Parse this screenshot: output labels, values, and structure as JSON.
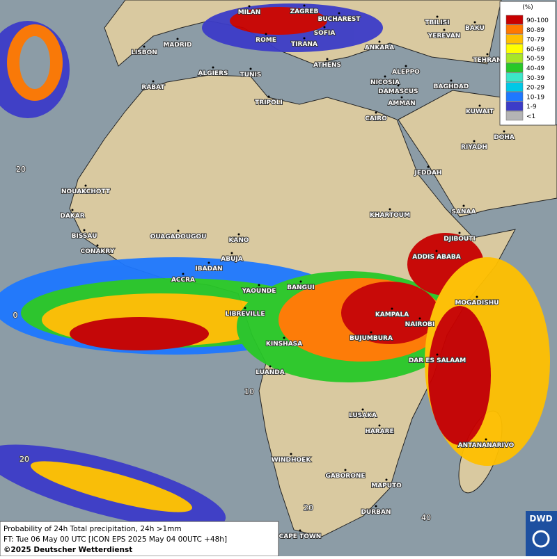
{
  "legend": {
    "unit": "(%)",
    "items": [
      {
        "label": "90-100",
        "color": "#c80000"
      },
      {
        "label": "80-89",
        "color": "#ff7800"
      },
      {
        "label": "70-79",
        "color": "#ffc000"
      },
      {
        "label": "60-69",
        "color": "#ffff00"
      },
      {
        "label": "50-59",
        "color": "#a8e628"
      },
      {
        "label": "40-49",
        "color": "#28c828"
      },
      {
        "label": "30-39",
        "color": "#3ce6c8"
      },
      {
        "label": "20-29",
        "color": "#00c8e6"
      },
      {
        "label": "10-19",
        "color": "#1e78ff"
      },
      {
        "label": "1-9",
        "color": "#3c3cc8"
      },
      {
        "label": "<1",
        "color": "#b4b4b4"
      }
    ]
  },
  "cities": [
    "MILAN",
    "ZAGREB",
    "BUCHAREST",
    "TBILISI",
    "BAKU",
    "MADRID",
    "ROME",
    "SOFIA",
    "YEREVAN",
    "LISBON",
    "TIRANA",
    "ANKARA",
    "ATHENS",
    "TEHRAN",
    "ALGIERS",
    "TUNIS",
    "ALEPPO",
    "RABAT",
    "NICOSIA",
    "BAGHDAD",
    "DAMASCUS",
    "TRIPOLI",
    "AMMAN",
    "KUWAIT",
    "CAIRO",
    "DOHA",
    "RIYADH",
    "NOUAKCHOTT",
    "JEDDAH",
    "DAKAR",
    "KHARTOUM",
    "SANAA",
    "BISSAU",
    "OUAGADOUGOU",
    "DJIBOUTI",
    "KANO",
    "CONAKRY",
    "ABUJA",
    "ADDIS ABABA",
    "IBADAN",
    "ACCRA",
    "BANGUI",
    "YAOUNDE",
    "MOGADISHU",
    "LIBREVILLE",
    "KAMPALA",
    "NAIROBI",
    "BUJUMBURA",
    "KINSHASA",
    "DAR ES SALAAM",
    "LUANDA",
    "LUSAKA",
    "HARARE",
    "ANTANANARIVO",
    "WINDHOEK",
    "GABORONE",
    "MAPUTO",
    "DURBAN",
    "CAPE TOWN"
  ],
  "grid_labels": [
    "10",
    "20",
    "40",
    "20",
    "0",
    "20"
  ],
  "footer": [
    "Probability of 24h Total precipitation, 24h >1mm",
    "FT: Tue 06 May 00 UTC [ICON EPS 2025 May 04 00UTC +48h]",
    "©2025 Deutscher Wetterdienst"
  ],
  "logo": "DWD"
}
